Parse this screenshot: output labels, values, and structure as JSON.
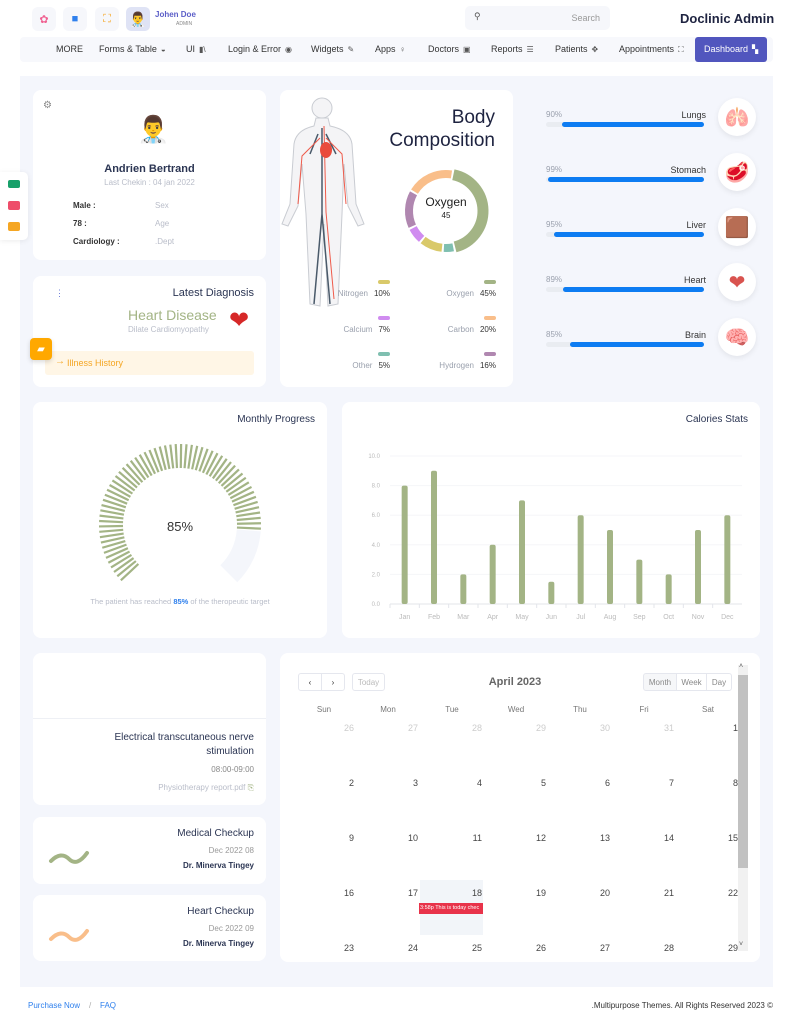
{
  "header": {
    "user_name": "Johen Doe",
    "user_role": "ADMIN",
    "search_placeholder": "Search",
    "app_title": "Doclinic Admin",
    "icons": [
      "flower-icon",
      "file-icon",
      "fullscreen-icon"
    ]
  },
  "nav": [
    {
      "label": "MORE",
      "icon": ""
    },
    {
      "label": "Forms & Table",
      "icon": "◒"
    },
    {
      "label": "UI",
      "icon": "▮\\"
    },
    {
      "label": "Login & Error",
      "icon": "◉"
    },
    {
      "label": "Widgets",
      "icon": "✎"
    },
    {
      "label": "Apps",
      "icon": "♀"
    },
    {
      "label": "Doctors",
      "icon": "▣"
    },
    {
      "label": "Reports",
      "icon": "☰"
    },
    {
      "label": "Patients",
      "icon": "✥"
    },
    {
      "label": "Appointments",
      "icon": "⛶"
    },
    {
      "label": "Dashboard",
      "icon": "▚",
      "active": true
    }
  ],
  "patient": {
    "name": "Andrien Bertrand",
    "last_checkin": "Last Chekin : 04 jan 2022",
    "fields": [
      {
        "value": "Male :",
        "label": "Sex"
      },
      {
        "value": "78 :",
        "label": "Age"
      },
      {
        "value": "Cardiology :",
        "label": ".Dept"
      }
    ]
  },
  "diagnosis": {
    "title": "Latest Diagnosis",
    "disease": "Heart Disease",
    "subtitle": "Dilate Cardiomyopathy",
    "history_link": "Illness History"
  },
  "body_composition": {
    "title_line1": "Body",
    "title_line2": "Composition",
    "center_label": "Oxygen",
    "center_value": "45",
    "items": [
      {
        "name": "Nitrogen",
        "value": "10%",
        "color": "#d9c96a"
      },
      {
        "name": "Oxygen",
        "value": "45%",
        "color": "#a3b485"
      },
      {
        "name": "Calcium",
        "value": "7%",
        "color": "#d08cf0"
      },
      {
        "name": "Carbon",
        "value": "20%",
        "color": "#f9be8a"
      },
      {
        "name": "Other",
        "value": "5%",
        "color": "#7fbfb0"
      },
      {
        "name": "Hydrogen",
        "value": "16%",
        "color": "#b087b0"
      }
    ]
  },
  "organs": [
    {
      "name": "Lungs",
      "percent": 90,
      "label": "90%",
      "icon": "🫁"
    },
    {
      "name": "Stomach",
      "percent": 99,
      "label": "99%",
      "icon": "🥩"
    },
    {
      "name": "Liver",
      "percent": 95,
      "label": "95%",
      "icon": "🟫"
    },
    {
      "name": "Heart",
      "percent": 89,
      "label": "89%",
      "icon": "❤"
    },
    {
      "name": "Brain",
      "percent": 85,
      "label": "85%",
      "icon": "🧠"
    }
  ],
  "monthly_progress": {
    "title": "Monthly Progress",
    "value": 85,
    "value_label": "85%",
    "text_before": "The patient has reached ",
    "text_highlight": "85%",
    "text_after": " of the theropeutic target",
    "color": "#a3b485"
  },
  "chart_data": {
    "type": "bar",
    "title": "Calories Stats",
    "categories": [
      "Jan",
      "Feb",
      "Mar",
      "Apr",
      "May",
      "Jun",
      "Jul",
      "Aug",
      "Sep",
      "Oct",
      "Nov",
      "Dec"
    ],
    "values": [
      8,
      9,
      2,
      4,
      7,
      1.5,
      6,
      5,
      3,
      2,
      5,
      6
    ],
    "ylim": [
      0,
      10
    ],
    "yticks": [
      "0.0",
      "2.0",
      "4.0",
      "6.0",
      "8.0",
      "10.0"
    ],
    "color": "#a3b485",
    "grid": true
  },
  "appointments": [
    {
      "title": "Electrical transcutaneous nerve stimulation",
      "time": "08:00-09:00",
      "file": "Physiotherapy report.pdf"
    },
    {
      "title": "Medical Checkup",
      "date": "Dec 2022 08",
      "doctor": "Dr. Minerva Tingey",
      "color": "#a3b485"
    },
    {
      "title": "Heart Checkup",
      "date": "Dec 2022 09",
      "doctor": "Dr. Minerva Tingey",
      "color": "#f9be8a"
    }
  ],
  "calendar": {
    "title": "April 2023",
    "today_label": "Today",
    "views": [
      "Month",
      "Week",
      "Day"
    ],
    "weekdays": [
      "Sun",
      "Mon",
      "Tue",
      "Wed",
      "Thu",
      "Fri",
      "Sat"
    ],
    "weeks": [
      [
        "26",
        "27",
        "28",
        "29",
        "30",
        "31",
        "1"
      ],
      [
        "2",
        "3",
        "4",
        "5",
        "6",
        "7",
        "8"
      ],
      [
        "9",
        "10",
        "11",
        "12",
        "13",
        "14",
        "15"
      ],
      [
        "16",
        "17",
        "18",
        "19",
        "20",
        "21",
        "22"
      ],
      [
        "23",
        "24",
        "25",
        "26",
        "27",
        "28",
        "29"
      ]
    ],
    "event": {
      "text": "3:58p This is today chec",
      "color": "#e8334a"
    }
  },
  "footer": {
    "purchase": "Purchase Now",
    "sep": "/",
    "faq": "FAQ",
    "copyright": ".Multipurpose Themes. All Rights Reserved 2023 ©"
  }
}
